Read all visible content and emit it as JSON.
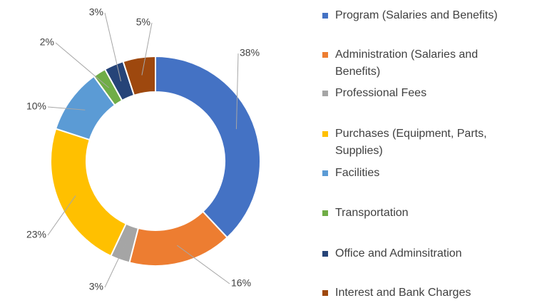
{
  "chart_data": {
    "type": "pie",
    "donut": true,
    "categories": [
      "Program (Salaries and Benefits)",
      "Administration (Salaries and Benefits)",
      "Professional Fees",
      "Purchases (Equipment, Parts, Supplies)",
      "Facilities",
      "Transportation",
      "Office and Adminsitration",
      "Interest and Bank Charges"
    ],
    "values": [
      38,
      16,
      3,
      23,
      10,
      2,
      3,
      5
    ],
    "value_labels": [
      "38%",
      "16%",
      "3%",
      "23%",
      "10%",
      "2%",
      "3%",
      "5%"
    ],
    "colors": [
      "#4472c4",
      "#ed7d31",
      "#a5a5a5",
      "#ffc000",
      "#5b9bd5",
      "#70ad47",
      "#264478",
      "#9e480e"
    ]
  }
}
